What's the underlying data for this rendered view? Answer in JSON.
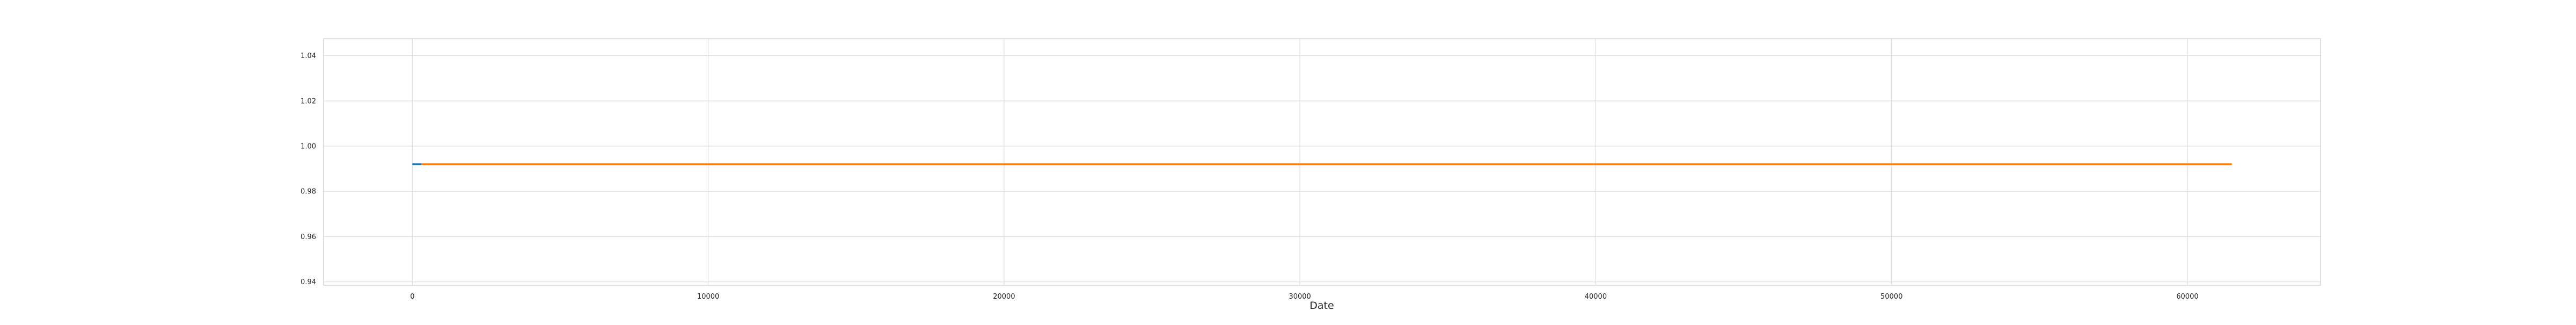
{
  "chart_data": {
    "type": "line",
    "title": "",
    "xlabel": "Date",
    "ylabel": "",
    "xlim": [
      -3000,
      64500
    ],
    "ylim": [
      0.9385,
      1.0475
    ],
    "grid": true,
    "x_ticks": [
      0,
      10000,
      20000,
      30000,
      40000,
      50000,
      60000
    ],
    "x_tick_labels": [
      "0",
      "10000",
      "20000",
      "30000",
      "40000",
      "50000",
      "60000"
    ],
    "y_ticks": [
      0.94,
      0.96,
      0.98,
      1.0,
      1.02,
      1.04
    ],
    "y_tick_labels": [
      "0.94",
      "0.96",
      "0.98",
      "1.00",
      "1.02",
      "1.04"
    ],
    "series": [
      {
        "color": "#1f77b4",
        "x": [
          0,
          300
        ],
        "y": [
          0.992,
          0.992
        ]
      },
      {
        "color": "#ff7f0e",
        "x": [
          300,
          61500
        ],
        "y": [
          0.992,
          0.992
        ]
      }
    ]
  }
}
